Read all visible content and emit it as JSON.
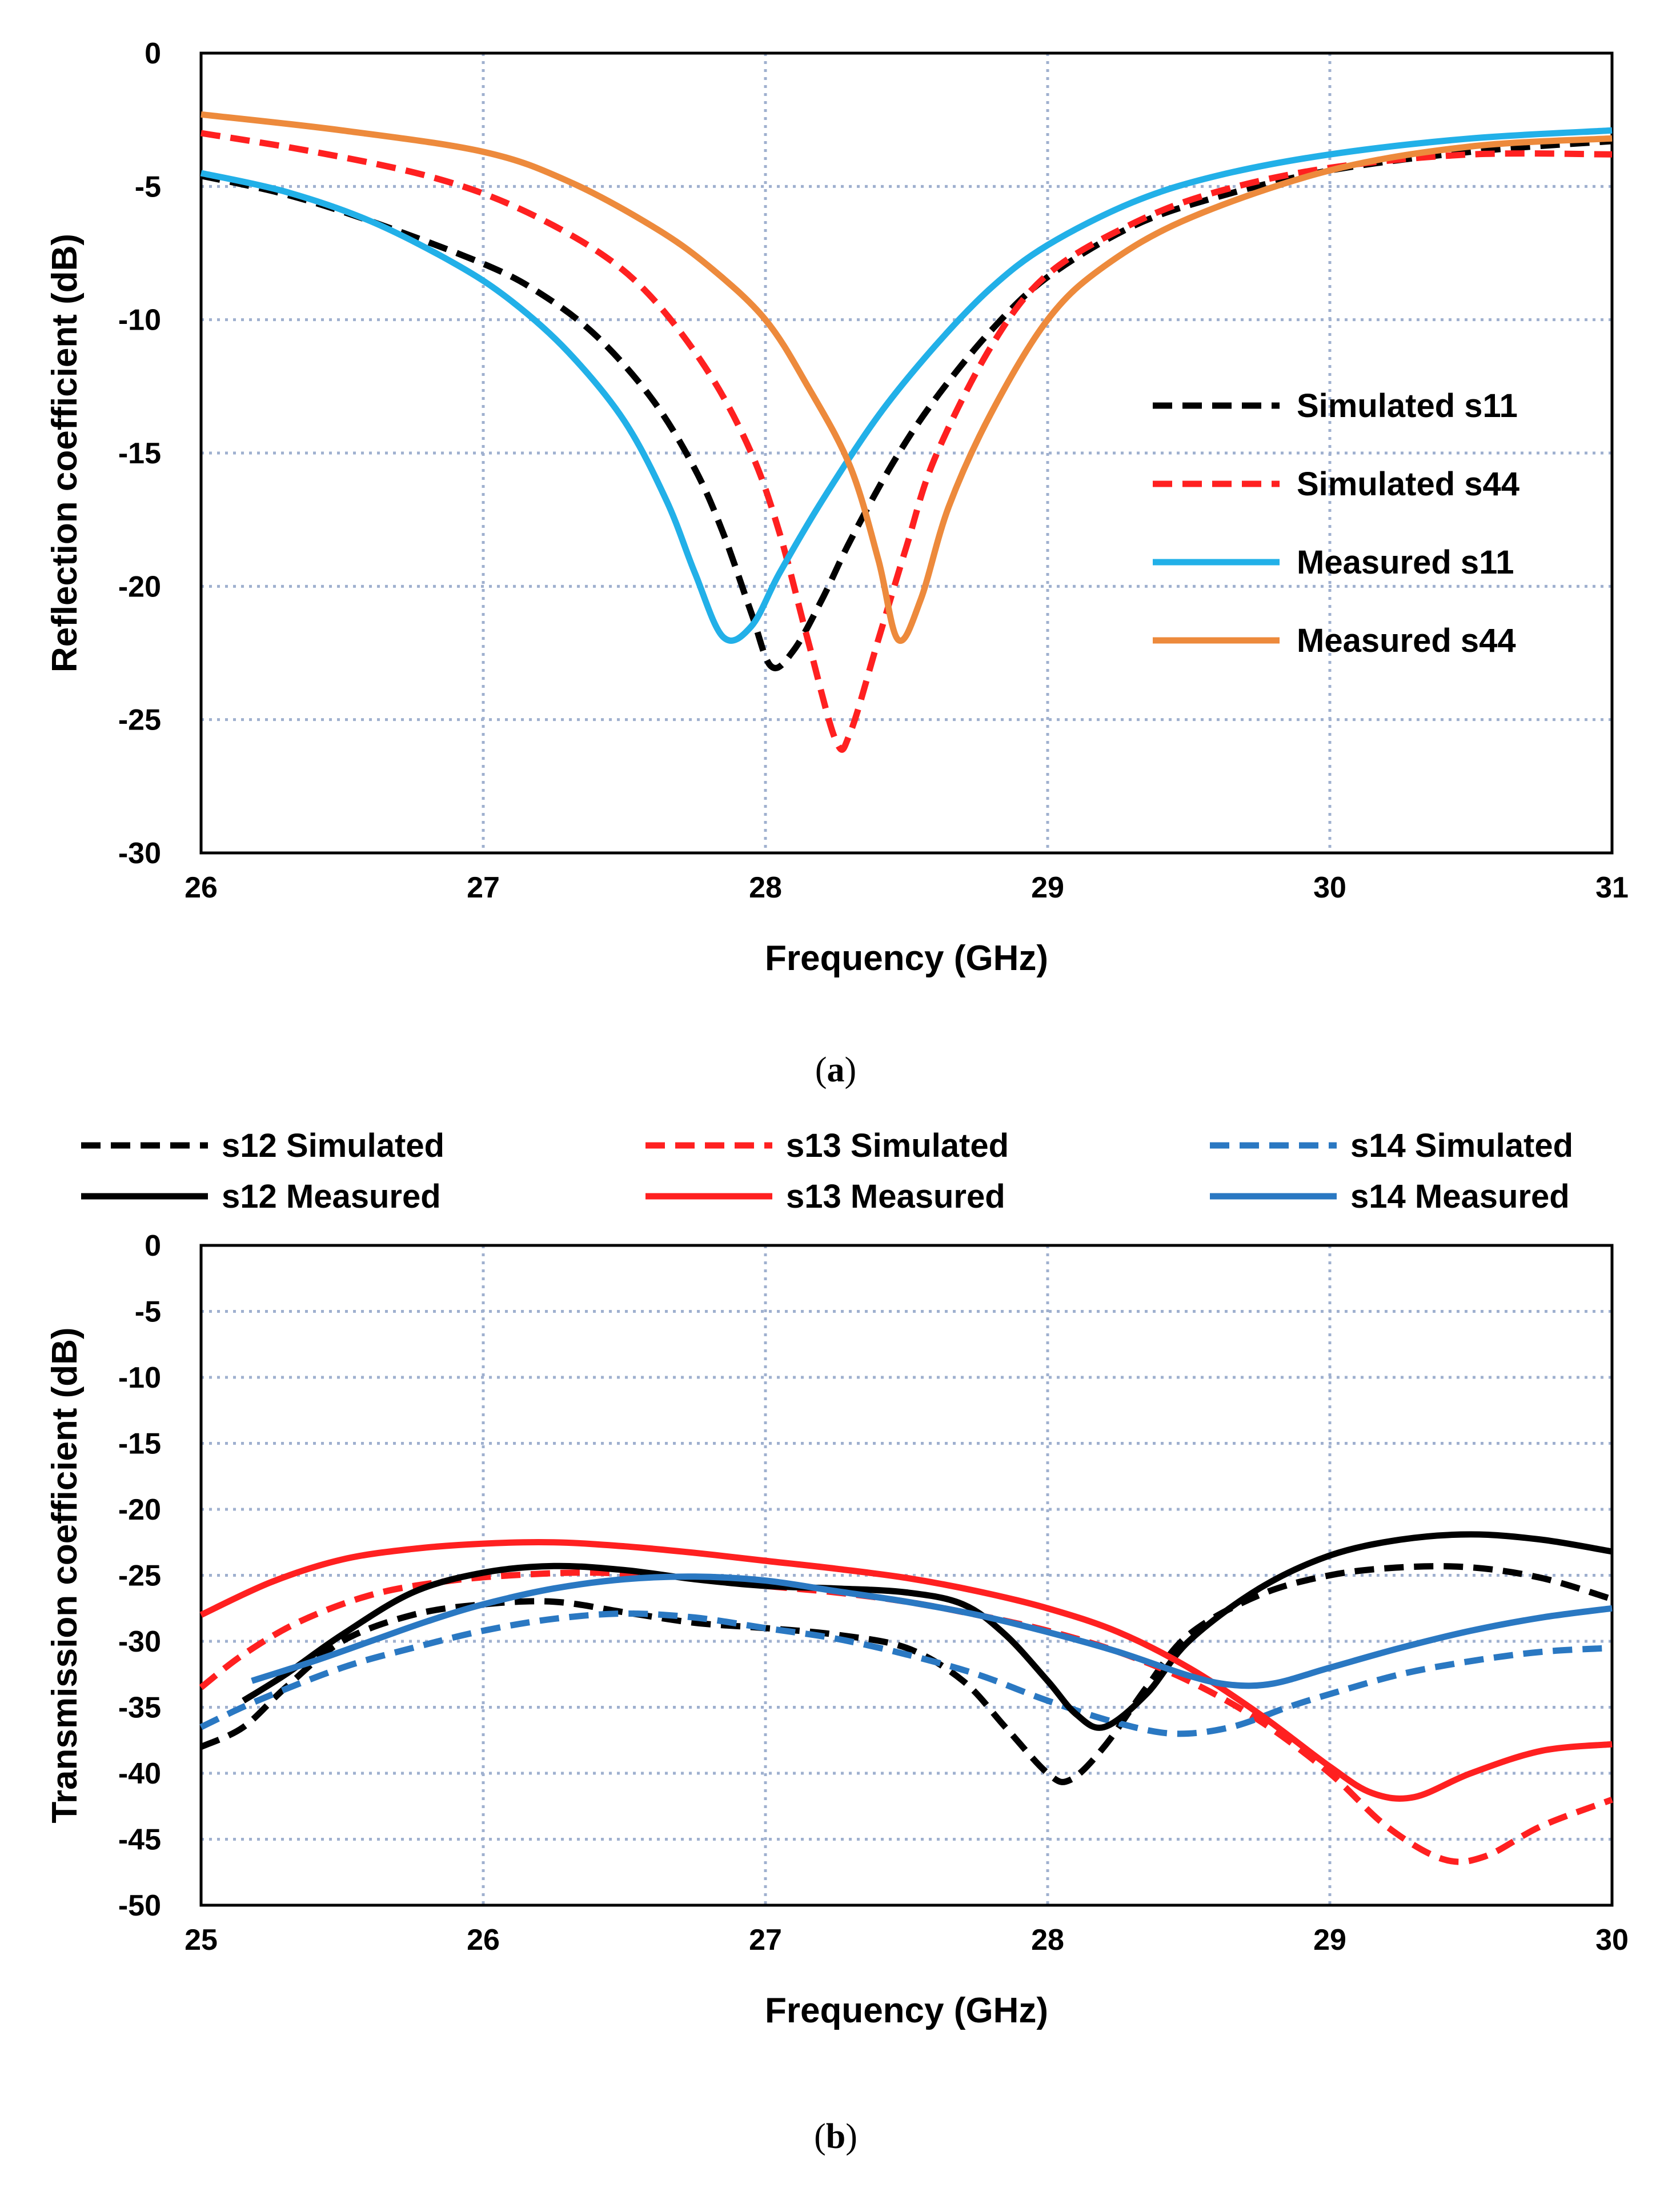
{
  "chart_data": [
    {
      "type": "line",
      "caption_open": "(",
      "caption_letter": "a",
      "caption_close": ")",
      "xlabel": "Frequency (GHz)",
      "ylabel": "Reflection coefficient (dB)",
      "xlim": [
        26,
        31
      ],
      "ylim": [
        -30,
        0
      ],
      "xticks": [
        26,
        27,
        28,
        29,
        30,
        31
      ],
      "yticks": [
        0,
        -5,
        -10,
        -15,
        -20,
        -25,
        -30
      ],
      "grid": true,
      "legend_position": "center-right",
      "series": [
        {
          "name": "Simulated s11",
          "color": "#000000",
          "dashed": true,
          "points": [
            [
              26,
              -4.6
            ],
            [
              26.3,
              -5.3
            ],
            [
              26.6,
              -6.3
            ],
            [
              27,
              -7.9
            ],
            [
              27.2,
              -9.0
            ],
            [
              27.4,
              -10.6
            ],
            [
              27.6,
              -13.0
            ],
            [
              27.75,
              -15.6
            ],
            [
              27.85,
              -18.0
            ],
            [
              27.95,
              -21.0
            ],
            [
              28.02,
              -23.0
            ],
            [
              28.1,
              -22.4
            ],
            [
              28.2,
              -20.5
            ],
            [
              28.3,
              -18.3
            ],
            [
              28.45,
              -15.4
            ],
            [
              28.6,
              -13.0
            ],
            [
              28.8,
              -10.4
            ],
            [
              29,
              -8.4
            ],
            [
              29.3,
              -6.5
            ],
            [
              29.6,
              -5.4
            ],
            [
              30,
              -4.4
            ],
            [
              30.5,
              -3.7
            ],
            [
              31,
              -3.3
            ]
          ]
        },
        {
          "name": "Simulated s44",
          "color": "#ff2020",
          "dashed": true,
          "points": [
            [
              26,
              -3.0
            ],
            [
              26.4,
              -3.7
            ],
            [
              26.8,
              -4.6
            ],
            [
              27.1,
              -5.7
            ],
            [
              27.4,
              -7.4
            ],
            [
              27.6,
              -9.2
            ],
            [
              27.8,
              -12.0
            ],
            [
              27.95,
              -15.0
            ],
            [
              28.05,
              -18.0
            ],
            [
              28.15,
              -22.0
            ],
            [
              28.25,
              -25.8
            ],
            [
              28.3,
              -25.5
            ],
            [
              28.4,
              -22.0
            ],
            [
              28.5,
              -18.5
            ],
            [
              28.6,
              -15.2
            ],
            [
              28.8,
              -11.0
            ],
            [
              29,
              -8.3
            ],
            [
              29.3,
              -6.4
            ],
            [
              29.6,
              -5.2
            ],
            [
              30,
              -4.3
            ],
            [
              30.5,
              -3.8
            ],
            [
              31,
              -3.8
            ]
          ]
        },
        {
          "name": "Measured s11",
          "color": "#22b0e8",
          "dashed": false,
          "points": [
            [
              26,
              -4.5
            ],
            [
              26.3,
              -5.2
            ],
            [
              26.6,
              -6.3
            ],
            [
              26.9,
              -7.9
            ],
            [
              27.1,
              -9.3
            ],
            [
              27.3,
              -11.2
            ],
            [
              27.5,
              -13.8
            ],
            [
              27.65,
              -16.8
            ],
            [
              27.75,
              -19.5
            ],
            [
              27.85,
              -21.9
            ],
            [
              27.95,
              -21.5
            ],
            [
              28.05,
              -19.5
            ],
            [
              28.2,
              -16.8
            ],
            [
              28.4,
              -13.6
            ],
            [
              28.6,
              -11.0
            ],
            [
              28.8,
              -8.8
            ],
            [
              29,
              -7.2
            ],
            [
              29.3,
              -5.6
            ],
            [
              29.6,
              -4.6
            ],
            [
              30,
              -3.8
            ],
            [
              30.5,
              -3.2
            ],
            [
              31,
              -2.9
            ]
          ]
        },
        {
          "name": "Measured s44",
          "color": "#ed8a3c",
          "dashed": false,
          "points": [
            [
              26,
              -2.3
            ],
            [
              26.5,
              -2.9
            ],
            [
              27,
              -3.7
            ],
            [
              27.3,
              -4.8
            ],
            [
              27.6,
              -6.5
            ],
            [
              27.8,
              -8.0
            ],
            [
              28,
              -10.0
            ],
            [
              28.15,
              -12.5
            ],
            [
              28.3,
              -15.5
            ],
            [
              28.4,
              -19.0
            ],
            [
              28.47,
              -22.0
            ],
            [
              28.55,
              -20.5
            ],
            [
              28.65,
              -17.0
            ],
            [
              28.8,
              -13.5
            ],
            [
              29,
              -10.0
            ],
            [
              29.2,
              -8.0
            ],
            [
              29.5,
              -6.2
            ],
            [
              30,
              -4.4
            ],
            [
              30.5,
              -3.5
            ],
            [
              31,
              -3.2
            ]
          ]
        }
      ]
    },
    {
      "type": "line",
      "caption_open": "(",
      "caption_letter": "b",
      "caption_close": ")",
      "xlabel": "Frequency (GHz)",
      "ylabel": "Transmission coefficient (dB)",
      "xlim": [
        25,
        30
      ],
      "ylim": [
        -50,
        0
      ],
      "xticks": [
        25,
        26,
        27,
        28,
        29,
        30
      ],
      "yticks": [
        0,
        -5,
        -10,
        -15,
        -20,
        -25,
        -30,
        -35,
        -40,
        -45,
        -50
      ],
      "grid": true,
      "legend_position": "top",
      "series": [
        {
          "name": "s12 Simulated",
          "color": "#000000",
          "dashed": true,
          "points": [
            [
              25,
              -38.0
            ],
            [
              25.15,
              -36.5
            ],
            [
              25.3,
              -33.5
            ],
            [
              25.5,
              -30.0
            ],
            [
              25.75,
              -28.0
            ],
            [
              26,
              -27.2
            ],
            [
              26.25,
              -27.0
            ],
            [
              26.5,
              -27.8
            ],
            [
              26.75,
              -28.6
            ],
            [
              27,
              -29.0
            ],
            [
              27.25,
              -29.5
            ],
            [
              27.5,
              -30.5
            ],
            [
              27.7,
              -33.0
            ],
            [
              27.85,
              -36.5
            ],
            [
              28,
              -40.0
            ],
            [
              28.08,
              -40.5
            ],
            [
              28.2,
              -38.0
            ],
            [
              28.35,
              -33.5
            ],
            [
              28.5,
              -29.5
            ],
            [
              28.75,
              -26.5
            ],
            [
              29,
              -25.0
            ],
            [
              29.25,
              -24.4
            ],
            [
              29.5,
              -24.4
            ],
            [
              29.75,
              -25.2
            ],
            [
              30,
              -26.8
            ]
          ]
        },
        {
          "name": "s13 Simulated",
          "color": "#ff2020",
          "dashed": true,
          "points": [
            [
              25,
              -33.5
            ],
            [
              25.15,
              -31.0
            ],
            [
              25.35,
              -28.5
            ],
            [
              25.6,
              -26.5
            ],
            [
              25.85,
              -25.5
            ],
            [
              26.1,
              -25.0
            ],
            [
              26.4,
              -24.8
            ],
            [
              26.75,
              -25.2
            ],
            [
              27,
              -25.8
            ],
            [
              27.25,
              -26.3
            ],
            [
              27.5,
              -27.0
            ],
            [
              27.75,
              -28.0
            ],
            [
              28,
              -29.2
            ],
            [
              28.25,
              -30.8
            ],
            [
              28.5,
              -33.0
            ],
            [
              28.75,
              -36.0
            ],
            [
              29,
              -40.0
            ],
            [
              29.2,
              -44.0
            ],
            [
              29.4,
              -46.5
            ],
            [
              29.55,
              -46.3
            ],
            [
              29.75,
              -44.0
            ],
            [
              30,
              -42.0
            ]
          ]
        },
        {
          "name": "s14 Simulated",
          "color": "#2a78c2",
          "dashed": true,
          "points": [
            [
              25,
              -36.5
            ],
            [
              25.2,
              -34.5
            ],
            [
              25.5,
              -32.0
            ],
            [
              25.75,
              -30.5
            ],
            [
              26,
              -29.2
            ],
            [
              26.25,
              -28.3
            ],
            [
              26.5,
              -27.9
            ],
            [
              26.75,
              -28.2
            ],
            [
              27,
              -29.0
            ],
            [
              27.25,
              -29.8
            ],
            [
              27.5,
              -31.0
            ],
            [
              27.75,
              -32.5
            ],
            [
              28,
              -34.5
            ],
            [
              28.25,
              -36.2
            ],
            [
              28.45,
              -37.0
            ],
            [
              28.65,
              -36.5
            ],
            [
              28.85,
              -35.0
            ],
            [
              29,
              -34.0
            ],
            [
              29.25,
              -32.5
            ],
            [
              29.5,
              -31.5
            ],
            [
              29.75,
              -30.8
            ],
            [
              30,
              -30.5
            ]
          ]
        },
        {
          "name": "s12 Measured",
          "color": "#000000",
          "dashed": false,
          "points": [
            [
              25.15,
              -34.5
            ],
            [
              25.3,
              -32.5
            ],
            [
              25.5,
              -29.5
            ],
            [
              25.75,
              -26.3
            ],
            [
              26,
              -24.8
            ],
            [
              26.25,
              -24.3
            ],
            [
              26.5,
              -24.6
            ],
            [
              26.75,
              -25.3
            ],
            [
              27,
              -25.8
            ],
            [
              27.25,
              -26.0
            ],
            [
              27.5,
              -26.3
            ],
            [
              27.7,
              -27.2
            ],
            [
              27.85,
              -29.5
            ],
            [
              28,
              -33.0
            ],
            [
              28.1,
              -35.5
            ],
            [
              28.2,
              -36.5
            ],
            [
              28.35,
              -34.0
            ],
            [
              28.5,
              -30.0
            ],
            [
              28.75,
              -26.0
            ],
            [
              29,
              -23.5
            ],
            [
              29.25,
              -22.3
            ],
            [
              29.5,
              -21.9
            ],
            [
              29.75,
              -22.3
            ],
            [
              30,
              -23.2
            ]
          ]
        },
        {
          "name": "s13 Measured",
          "color": "#ff2020",
          "dashed": false,
          "points": [
            [
              25,
              -28.0
            ],
            [
              25.25,
              -25.5
            ],
            [
              25.5,
              -23.8
            ],
            [
              25.75,
              -23.0
            ],
            [
              26,
              -22.6
            ],
            [
              26.25,
              -22.5
            ],
            [
              26.5,
              -22.8
            ],
            [
              26.75,
              -23.3
            ],
            [
              27,
              -23.9
            ],
            [
              27.25,
              -24.5
            ],
            [
              27.5,
              -25.2
            ],
            [
              27.75,
              -26.2
            ],
            [
              28,
              -27.5
            ],
            [
              28.25,
              -29.3
            ],
            [
              28.5,
              -32.0
            ],
            [
              28.75,
              -35.5
            ],
            [
              29,
              -39.5
            ],
            [
              29.15,
              -41.5
            ],
            [
              29.3,
              -41.8
            ],
            [
              29.5,
              -40.0
            ],
            [
              29.75,
              -38.3
            ],
            [
              30,
              -37.8
            ]
          ]
        },
        {
          "name": "s14 Measured",
          "color": "#2a78c2",
          "dashed": false,
          "points": [
            [
              25.18,
              -33.0
            ],
            [
              25.4,
              -31.5
            ],
            [
              25.6,
              -30.0
            ],
            [
              25.8,
              -28.5
            ],
            [
              26,
              -27.2
            ],
            [
              26.25,
              -26.0
            ],
            [
              26.5,
              -25.3
            ],
            [
              26.75,
              -25.1
            ],
            [
              27,
              -25.4
            ],
            [
              27.25,
              -26.2
            ],
            [
              27.5,
              -27.0
            ],
            [
              27.75,
              -28.0
            ],
            [
              28,
              -29.3
            ],
            [
              28.25,
              -30.8
            ],
            [
              28.5,
              -32.6
            ],
            [
              28.65,
              -33.3
            ],
            [
              28.8,
              -33.2
            ],
            [
              29,
              -32.0
            ],
            [
              29.25,
              -30.5
            ],
            [
              29.5,
              -29.2
            ],
            [
              29.75,
              -28.2
            ],
            [
              30,
              -27.5
            ]
          ]
        }
      ]
    }
  ]
}
